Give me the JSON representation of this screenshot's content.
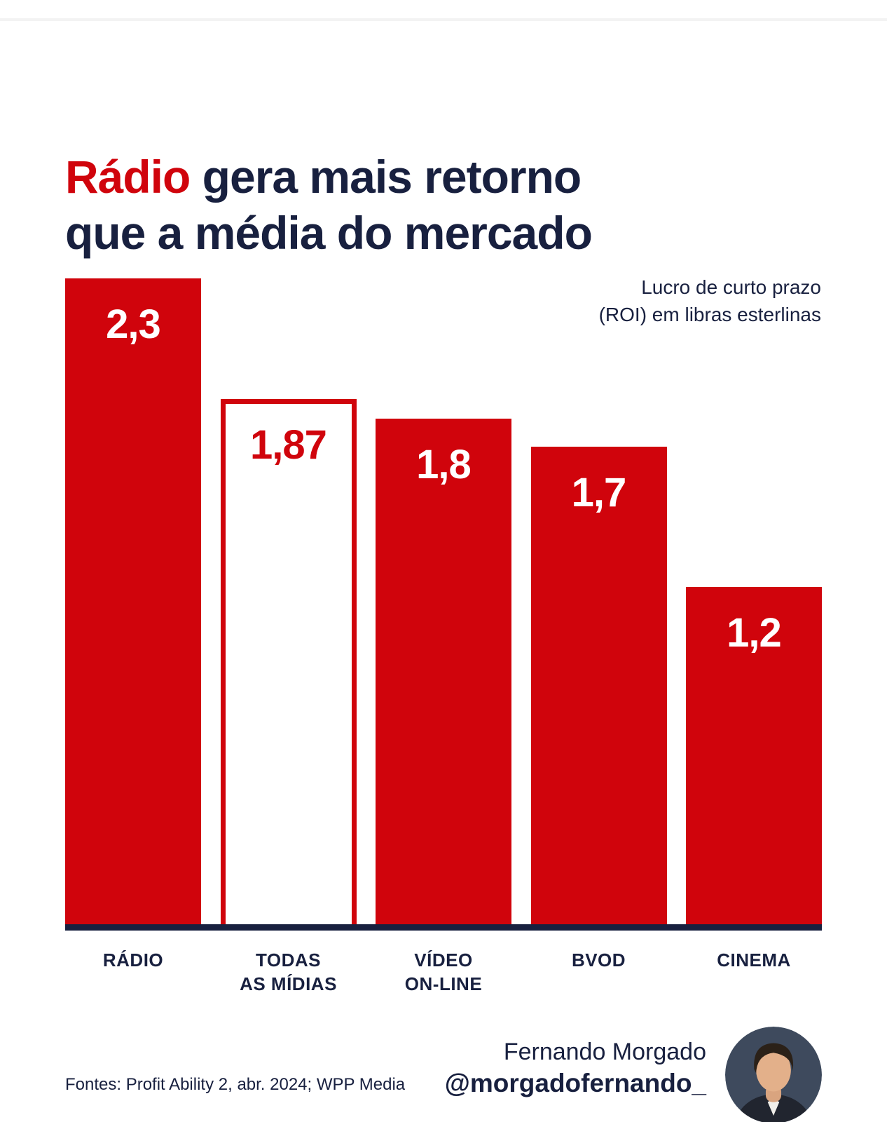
{
  "title": {
    "highlight": "Rádio",
    "rest_line1": " gera mais retorno",
    "line2": "que a média do mercado",
    "highlight_color": "#d0040c",
    "text_color": "#18203f"
  },
  "subtitle": {
    "line1": "Lucro de curto prazo",
    "line2": "(ROI) em libras esterlinas"
  },
  "chart_data": {
    "type": "bar",
    "title": "Rádio gera mais retorno que a média do mercado",
    "ylabel": "Lucro de curto prazo (ROI) em libras esterlinas",
    "xlabel": "",
    "categories": [
      "RÁDIO",
      "TODAS\nAS MÍDIAS",
      "VÍDEO\nON-LINE",
      "BVOD",
      "CINEMA"
    ],
    "values": [
      2.3,
      1.87,
      1.8,
      1.7,
      1.2
    ],
    "value_labels": [
      "2,3",
      "1,87",
      "1,8",
      "1,7",
      "1,2"
    ],
    "ylim": [
      0,
      2.3
    ],
    "grid": false,
    "legend": false,
    "bar_styles": [
      "filled",
      "outlined",
      "filled",
      "filled",
      "filled"
    ],
    "bar_color": "#d0040c",
    "outlined_bar_fill": "#ffffff",
    "outlined_bar_border": "#d0040c",
    "outlined_bar_text": "#d0040c",
    "filled_bar_text": "#ffffff",
    "axis_line_color": "#18203f",
    "slugs": [
      "radio",
      "todas-as-midias",
      "video-on-line",
      "bvod",
      "cinema"
    ]
  },
  "footer": {
    "sources": "Fontes: Profit Ability 2, abr. 2024; WPP Media",
    "author_name": "Fernando Morgado",
    "author_handle": "@morgadofernando_"
  }
}
